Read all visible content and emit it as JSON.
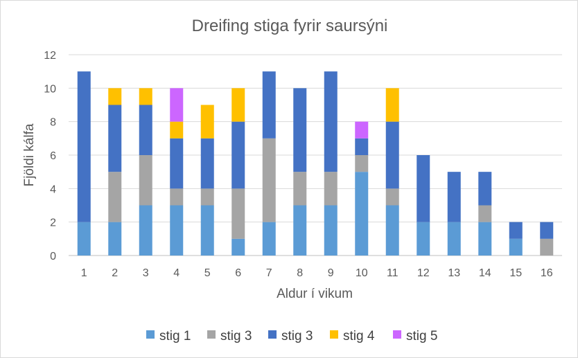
{
  "chart_data": {
    "type": "bar",
    "stacked": true,
    "title": "Dreifing stiga fyrir saursýni",
    "xlabel": "Aldur í vikum",
    "ylabel": "Fjöldi kálfa",
    "categories": [
      "1",
      "2",
      "3",
      "4",
      "5",
      "6",
      "7",
      "8",
      "9",
      "10",
      "11",
      "12",
      "13",
      "14",
      "15",
      "16"
    ],
    "ylim": [
      0,
      12
    ],
    "yticks": [
      0,
      2,
      4,
      6,
      8,
      10,
      12
    ],
    "grid": true,
    "legend_position": "bottom",
    "series": [
      {
        "name": "stig 1",
        "color": "#5b9bd5",
        "values": [
          2,
          2,
          3,
          3,
          3,
          1,
          2,
          3,
          3,
          5,
          3,
          2,
          2,
          2,
          1,
          0
        ]
      },
      {
        "name": "stig 3",
        "color": "#a5a5a5",
        "values": [
          0,
          3,
          3,
          1,
          1,
          3,
          5,
          2,
          2,
          1,
          1,
          0,
          0,
          1,
          0,
          1
        ]
      },
      {
        "name": "stig 3",
        "color": "#4472c4",
        "values": [
          9,
          4,
          3,
          3,
          3,
          4,
          4,
          5,
          6,
          1,
          4,
          4,
          3,
          2,
          1,
          1
        ]
      },
      {
        "name": "stig 4",
        "color": "#ffc000",
        "values": [
          0,
          1,
          1,
          1,
          2,
          2,
          0,
          0,
          0,
          0,
          2,
          0,
          0,
          0,
          0,
          0
        ]
      },
      {
        "name": "stig 5",
        "color": "#cc66ff",
        "values": [
          0,
          0,
          0,
          2,
          0,
          0,
          0,
          0,
          0,
          1,
          0,
          0,
          0,
          0,
          0,
          0
        ]
      }
    ]
  }
}
